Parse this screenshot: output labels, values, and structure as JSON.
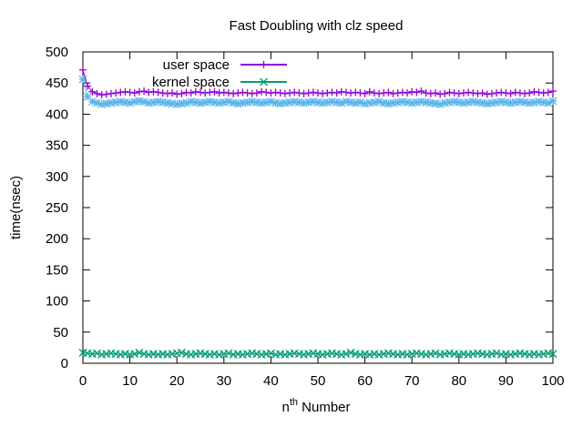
{
  "chart_data": {
    "type": "line",
    "title": "Fast Doubling with clz speed",
    "xlabel": {
      "base": "n",
      "superscript": "th",
      "rest": " Number"
    },
    "ylabel": "time(nsec)",
    "xlim": [
      0,
      100
    ],
    "ylim": [
      0,
      500
    ],
    "xticks": [
      "0",
      "10",
      "20",
      "30",
      "40",
      "50",
      "60",
      "70",
      "80",
      "90",
      "100"
    ],
    "yticks": [
      "0",
      "50",
      "100",
      "150",
      "200",
      "250",
      "300",
      "350",
      "400",
      "450",
      "500"
    ],
    "legend_placement": "top-left",
    "grid": false,
    "series": [
      {
        "name": "user space",
        "color": "#9400d3",
        "marker": "plus",
        "x": [
          0,
          1,
          2,
          3,
          4,
          5,
          6,
          7,
          8,
          9,
          10,
          11,
          12,
          13,
          14,
          15,
          16,
          17,
          18,
          19,
          20,
          21,
          22,
          23,
          24,
          25,
          26,
          27,
          28,
          29,
          30,
          31,
          32,
          33,
          34,
          35,
          36,
          37,
          38,
          39,
          40,
          41,
          42,
          43,
          44,
          45,
          46,
          47,
          48,
          49,
          50,
          51,
          52,
          53,
          54,
          55,
          56,
          57,
          58,
          59,
          60,
          61,
          62,
          63,
          64,
          65,
          66,
          67,
          68,
          69,
          70,
          71,
          72,
          73,
          74,
          75,
          76,
          77,
          78,
          79,
          80,
          81,
          82,
          83,
          84,
          85,
          86,
          87,
          88,
          89,
          90,
          91,
          92,
          93,
          94,
          95,
          96,
          97,
          98,
          99,
          100
        ],
        "y": [
          471,
          445,
          436,
          433,
          431,
          432,
          433,
          434,
          435,
          436,
          435,
          434,
          436,
          437,
          435,
          436,
          435,
          434,
          433,
          434,
          432,
          433,
          435,
          434,
          436,
          435,
          434,
          435,
          436,
          434,
          435,
          434,
          433,
          434,
          435,
          434,
          433,
          434,
          436,
          435,
          434,
          435,
          434,
          433,
          434,
          435,
          434,
          433,
          434,
          435,
          434,
          433,
          434,
          435,
          434,
          436,
          435,
          434,
          435,
          434,
          433,
          436,
          434,
          433,
          434,
          435,
          433,
          434,
          435,
          434,
          436,
          435,
          437,
          434,
          433,
          434,
          432,
          433,
          435,
          434,
          433,
          434,
          435,
          434,
          433,
          434,
          432,
          433,
          434,
          435,
          434,
          433,
          435,
          434,
          433,
          434,
          436,
          435,
          434,
          435,
          437
        ]
      },
      {
        "name": "kernel space",
        "color": "#009e73",
        "marker": "cross",
        "x": [
          0,
          1,
          2,
          3,
          4,
          5,
          6,
          7,
          8,
          9,
          10,
          11,
          12,
          13,
          14,
          15,
          16,
          17,
          18,
          19,
          20,
          21,
          22,
          23,
          24,
          25,
          26,
          27,
          28,
          29,
          30,
          31,
          32,
          33,
          34,
          35,
          36,
          37,
          38,
          39,
          40,
          41,
          42,
          43,
          44,
          45,
          46,
          47,
          48,
          49,
          50,
          51,
          52,
          53,
          54,
          55,
          56,
          57,
          58,
          59,
          60,
          61,
          62,
          63,
          64,
          65,
          66,
          67,
          68,
          69,
          70,
          71,
          72,
          73,
          74,
          75,
          76,
          77,
          78,
          79,
          80,
          81,
          82,
          83,
          84,
          85,
          86,
          87,
          88,
          89,
          90,
          91,
          92,
          93,
          94,
          95,
          96,
          97,
          98,
          99,
          100
        ],
        "y": [
          17,
          16,
          15,
          16,
          14,
          15,
          16,
          15,
          14,
          15,
          14,
          15,
          17,
          15,
          14,
          15,
          14,
          15,
          14,
          15,
          16,
          17,
          15,
          14,
          15,
          16,
          15,
          14,
          15,
          14,
          15,
          16,
          14,
          15,
          14,
          15,
          16,
          15,
          14,
          15,
          16,
          14,
          15,
          14,
          15,
          16,
          15,
          14,
          15,
          16,
          15,
          14,
          15,
          16,
          15,
          14,
          15,
          17,
          15,
          14,
          15,
          14,
          15,
          14,
          15,
          16,
          15,
          14,
          15,
          14,
          15,
          16,
          15,
          14,
          15,
          16,
          14,
          15,
          16,
          15,
          14,
          15,
          14,
          15,
          16,
          15,
          14,
          15,
          16,
          14,
          15,
          14,
          15,
          16,
          15,
          14,
          15,
          14,
          15,
          16,
          15
        ]
      },
      {
        "name": "",
        "color": "#56b4e9",
        "marker": "star",
        "x": [
          0,
          1,
          2,
          3,
          4,
          5,
          6,
          7,
          8,
          9,
          10,
          11,
          12,
          13,
          14,
          15,
          16,
          17,
          18,
          19,
          20,
          21,
          22,
          23,
          24,
          25,
          26,
          27,
          28,
          29,
          30,
          31,
          32,
          33,
          34,
          35,
          36,
          37,
          38,
          39,
          40,
          41,
          42,
          43,
          44,
          45,
          46,
          47,
          48,
          49,
          50,
          51,
          52,
          53,
          54,
          55,
          56,
          57,
          58,
          59,
          60,
          61,
          62,
          63,
          64,
          65,
          66,
          67,
          68,
          69,
          70,
          71,
          72,
          73,
          74,
          75,
          76,
          77,
          78,
          79,
          80,
          81,
          82,
          83,
          84,
          85,
          86,
          87,
          88,
          89,
          90,
          91,
          92,
          93,
          94,
          95,
          96,
          97,
          98,
          99,
          100
        ],
        "y": [
          456,
          428,
          420,
          418,
          416,
          417,
          418,
          419,
          420,
          419,
          418,
          420,
          421,
          420,
          418,
          419,
          420,
          419,
          418,
          417,
          416,
          417,
          418,
          420,
          419,
          418,
          419,
          420,
          419,
          418,
          419,
          420,
          418,
          417,
          418,
          419,
          420,
          419,
          418,
          419,
          420,
          418,
          417,
          418,
          419,
          420,
          419,
          418,
          419,
          420,
          419,
          418,
          419,
          420,
          419,
          418,
          420,
          419,
          418,
          419,
          417,
          418,
          419,
          420,
          418,
          417,
          418,
          419,
          420,
          419,
          418,
          419,
          420,
          419,
          418,
          417,
          416,
          418,
          419,
          420,
          419,
          418,
          419,
          420,
          419,
          418,
          417,
          418,
          419,
          420,
          419,
          418,
          419,
          420,
          419,
          418,
          419,
          420,
          419,
          418,
          421
        ]
      }
    ]
  }
}
